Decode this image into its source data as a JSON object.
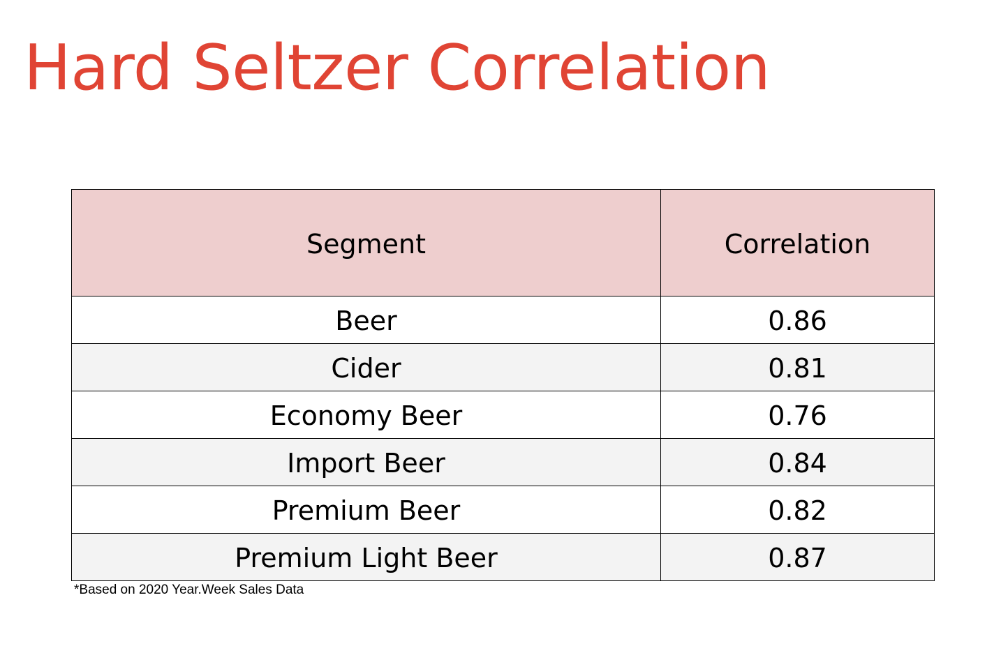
{
  "title": "Hard Seltzer Correlation",
  "colors": {
    "title": "#e04434",
    "header_bg": "#eecece",
    "row_white": "#ffffff",
    "row_gray": "#f3f3f3"
  },
  "table": {
    "headers": [
      "Segment",
      "Correlation"
    ],
    "rows": [
      {
        "segment": "Beer",
        "correlation": "0.86"
      },
      {
        "segment": "Cider",
        "correlation": "0.81"
      },
      {
        "segment": "Economy Beer",
        "correlation": "0.76"
      },
      {
        "segment": "Import Beer",
        "correlation": "0.84"
      },
      {
        "segment": "Premium Beer",
        "correlation": "0.82"
      },
      {
        "segment": "Premium Light Beer",
        "correlation": "0.87"
      }
    ]
  },
  "footnote": "*Based on 2020 Year.Week Sales Data"
}
